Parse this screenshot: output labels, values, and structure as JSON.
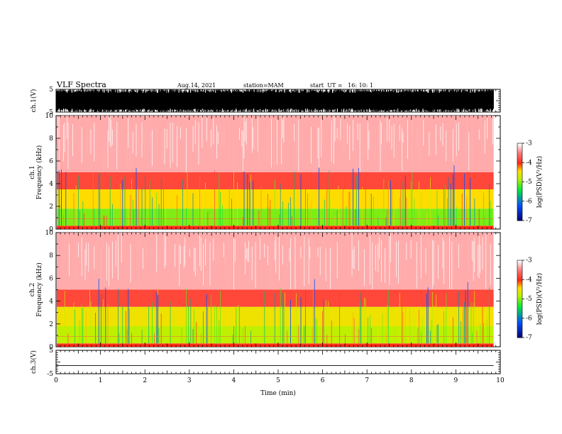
{
  "header": {
    "title": "VLF Spectra",
    "date": "Aug.14, 2021",
    "station": "station=MAM",
    "start": "start  UT =   16: 10: 1"
  },
  "chart_data": [
    {
      "type": "line",
      "panel": "ch1-waveform",
      "ylabel": "ch.1(V)",
      "ylim": [
        -5,
        5
      ],
      "yticks": [
        "5",
        "-5"
      ],
      "xlim": [
        0,
        10
      ],
      "x_data_end": 9.85,
      "note_values": "dense black waveform spanning nearly full range"
    },
    {
      "type": "heatmap",
      "panel": "ch1-spectrogram",
      "ylabel": "ch.1\nFrequency  (kHz)",
      "ylim": [
        0,
        10
      ],
      "yticks": [
        "0",
        "2",
        "4",
        "6",
        "8",
        "10"
      ],
      "xlim": [
        0,
        10
      ],
      "x_data_end": 9.85,
      "bands": [
        {
          "f0": 0.0,
          "f1": 0.3,
          "level": -4.0
        },
        {
          "f0": 0.3,
          "f1": 1.8,
          "level": -5.0
        },
        {
          "f0": 1.8,
          "f1": 3.5,
          "level": -4.4
        },
        {
          "f0": 3.5,
          "f1": 5.0,
          "level": -3.8
        },
        {
          "f0": 5.0,
          "f1": 10.0,
          "level": -3.3
        }
      ],
      "colorbar": {
        "label": "log(PSD)(V²/Hz)",
        "range": [
          -7,
          -3
        ],
        "ticks": [
          "-3",
          "-4",
          "-5",
          "-6",
          "-7"
        ]
      }
    },
    {
      "type": "heatmap",
      "panel": "ch2-spectrogram",
      "ylabel": "ch.2\nFrequency  (kHz)",
      "ylim": [
        0,
        10
      ],
      "yticks": [
        "0",
        "2",
        "4",
        "6",
        "8",
        "10"
      ],
      "xlim": [
        0,
        10
      ],
      "x_data_end": 9.85,
      "bands": [
        {
          "f0": 0.0,
          "f1": 0.3,
          "level": -4.0
        },
        {
          "f0": 0.3,
          "f1": 1.8,
          "level": -4.8
        },
        {
          "f0": 1.8,
          "f1": 3.5,
          "level": -4.5
        },
        {
          "f0": 3.5,
          "f1": 5.0,
          "level": -3.8
        },
        {
          "f0": 5.0,
          "f1": 10.0,
          "level": -3.3
        }
      ],
      "colorbar": {
        "label": "log(PSD)(V²/Hz)",
        "range": [
          -7,
          -3
        ],
        "ticks": [
          "-3",
          "-4",
          "-5",
          "-6",
          "-7"
        ]
      }
    },
    {
      "type": "line",
      "panel": "ch3-waveform",
      "ylabel": "ch.3(V)",
      "ylim": [
        -5,
        5
      ],
      "yticks": [
        "5",
        "-5"
      ],
      "xlim": [
        0,
        10
      ],
      "x_data_end": 9.85,
      "constant_value": -1.5
    }
  ],
  "xaxis": {
    "label": "Time  (min)",
    "ticks": [
      "0",
      "1",
      "2",
      "3",
      "4",
      "5",
      "6",
      "7",
      "8",
      "9",
      "10"
    ]
  }
}
